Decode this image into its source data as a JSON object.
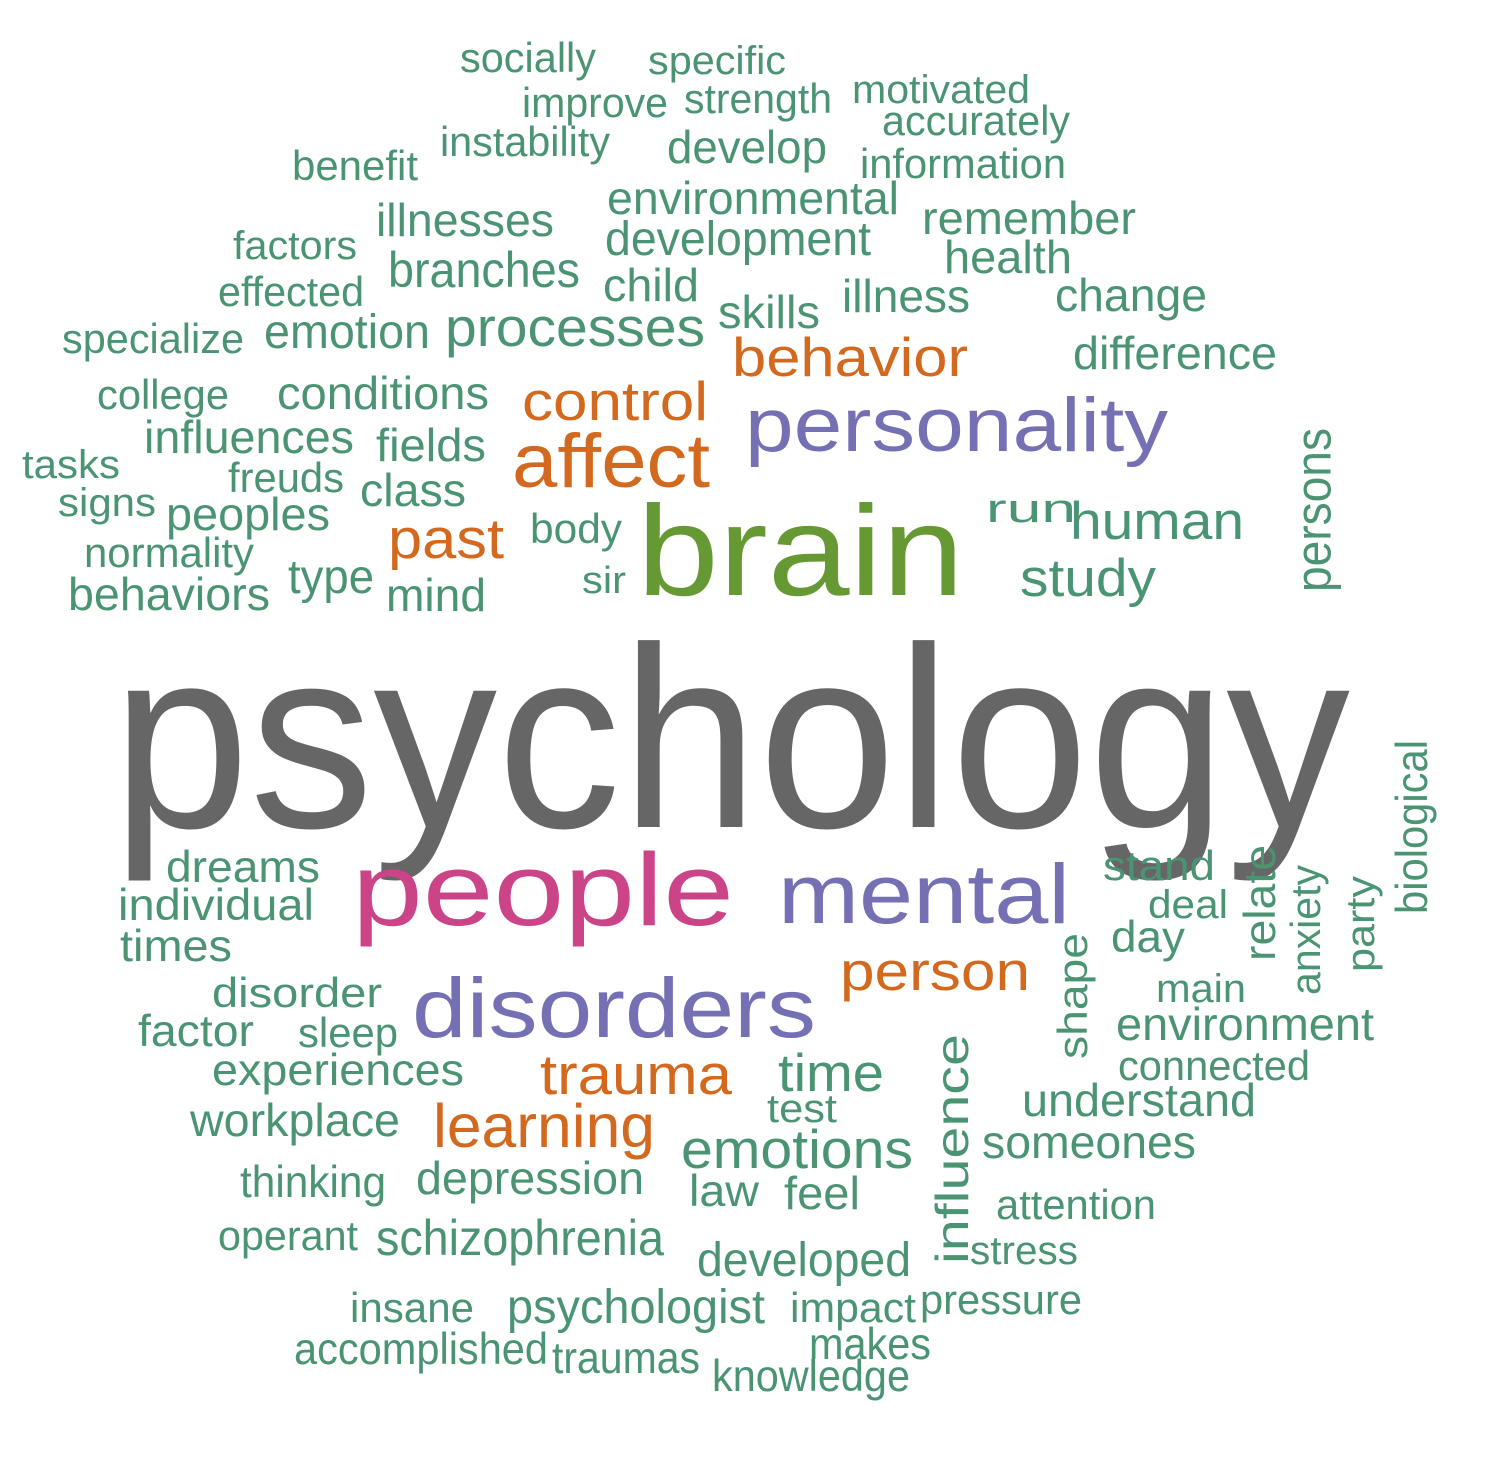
{
  "palette": {
    "gray": "#666666",
    "green": "#669933",
    "pink": "#CC4488",
    "purple": "#7570B3",
    "orange": "#D2691E",
    "teal": "#4A9473"
  },
  "words": [
    {
      "text": "psychology",
      "color": "gray",
      "rotated": false
    },
    {
      "text": "brain",
      "color": "green",
      "rotated": false
    },
    {
      "text": "people",
      "color": "pink",
      "rotated": false
    },
    {
      "text": "mental",
      "color": "purple",
      "rotated": false
    },
    {
      "text": "disorders",
      "color": "purple",
      "rotated": false
    },
    {
      "text": "personality",
      "color": "purple",
      "rotated": false
    },
    {
      "text": "affect",
      "color": "orange",
      "rotated": false
    },
    {
      "text": "control",
      "color": "orange",
      "rotated": false
    },
    {
      "text": "behavior",
      "color": "orange",
      "rotated": false
    },
    {
      "text": "past",
      "color": "orange",
      "rotated": false
    },
    {
      "text": "person",
      "color": "orange",
      "rotated": false
    },
    {
      "text": "trauma",
      "color": "orange",
      "rotated": false
    },
    {
      "text": "learning",
      "color": "orange",
      "rotated": false
    },
    {
      "text": "socially",
      "color": "teal",
      "rotated": false
    },
    {
      "text": "specific",
      "color": "teal",
      "rotated": false
    },
    {
      "text": "improve",
      "color": "teal",
      "rotated": false
    },
    {
      "text": "strength",
      "color": "teal",
      "rotated": false
    },
    {
      "text": "motivated",
      "color": "teal",
      "rotated": false
    },
    {
      "text": "accurately",
      "color": "teal",
      "rotated": false
    },
    {
      "text": "instability",
      "color": "teal",
      "rotated": false
    },
    {
      "text": "develop",
      "color": "teal",
      "rotated": false
    },
    {
      "text": "benefit",
      "color": "teal",
      "rotated": false
    },
    {
      "text": "information",
      "color": "teal",
      "rotated": false
    },
    {
      "text": "environmental",
      "color": "teal",
      "rotated": false
    },
    {
      "text": "illnesses",
      "color": "teal",
      "rotated": false
    },
    {
      "text": "remember",
      "color": "teal",
      "rotated": false
    },
    {
      "text": "factors",
      "color": "teal",
      "rotated": false
    },
    {
      "text": "development",
      "color": "teal",
      "rotated": false
    },
    {
      "text": "health",
      "color": "teal",
      "rotated": false
    },
    {
      "text": "branches",
      "color": "teal",
      "rotated": false
    },
    {
      "text": "child",
      "color": "teal",
      "rotated": false
    },
    {
      "text": "effected",
      "color": "teal",
      "rotated": false
    },
    {
      "text": "illness",
      "color": "teal",
      "rotated": false
    },
    {
      "text": "change",
      "color": "teal",
      "rotated": false
    },
    {
      "text": "skills",
      "color": "teal",
      "rotated": false
    },
    {
      "text": "processes",
      "color": "teal",
      "rotated": false
    },
    {
      "text": "specialize",
      "color": "teal",
      "rotated": false
    },
    {
      "text": "emotion",
      "color": "teal",
      "rotated": false
    },
    {
      "text": "difference",
      "color": "teal",
      "rotated": false
    },
    {
      "text": "college",
      "color": "teal",
      "rotated": false
    },
    {
      "text": "conditions",
      "color": "teal",
      "rotated": false
    },
    {
      "text": "influences",
      "color": "teal",
      "rotated": false
    },
    {
      "text": "fields",
      "color": "teal",
      "rotated": false
    },
    {
      "text": "tasks",
      "color": "teal",
      "rotated": false
    },
    {
      "text": "freuds",
      "color": "teal",
      "rotated": false
    },
    {
      "text": "class",
      "color": "teal",
      "rotated": false
    },
    {
      "text": "signs",
      "color": "teal",
      "rotated": false
    },
    {
      "text": "peoples",
      "color": "teal",
      "rotated": false
    },
    {
      "text": "run",
      "color": "teal",
      "rotated": false
    },
    {
      "text": "human",
      "color": "teal",
      "rotated": false
    },
    {
      "text": "body",
      "color": "teal",
      "rotated": false
    },
    {
      "text": "normality",
      "color": "teal",
      "rotated": false
    },
    {
      "text": "type",
      "color": "teal",
      "rotated": false
    },
    {
      "text": "sir",
      "color": "teal",
      "rotated": false
    },
    {
      "text": "study",
      "color": "teal",
      "rotated": false
    },
    {
      "text": "behaviors",
      "color": "teal",
      "rotated": false
    },
    {
      "text": "mind",
      "color": "teal",
      "rotated": false
    },
    {
      "text": "persons",
      "color": "teal",
      "rotated": true
    },
    {
      "text": "biological",
      "color": "teal",
      "rotated": true
    },
    {
      "text": "dreams",
      "color": "teal",
      "rotated": false
    },
    {
      "text": "stand",
      "color": "teal",
      "rotated": false
    },
    {
      "text": "individual",
      "color": "teal",
      "rotated": false
    },
    {
      "text": "deal",
      "color": "teal",
      "rotated": false
    },
    {
      "text": "relate",
      "color": "teal",
      "rotated": true
    },
    {
      "text": "anxiety",
      "color": "teal",
      "rotated": true
    },
    {
      "text": "party",
      "color": "teal",
      "rotated": true
    },
    {
      "text": "times",
      "color": "teal",
      "rotated": false
    },
    {
      "text": "day",
      "color": "teal",
      "rotated": false
    },
    {
      "text": "shape",
      "color": "teal",
      "rotated": true
    },
    {
      "text": "disorder",
      "color": "teal",
      "rotated": false
    },
    {
      "text": "main",
      "color": "teal",
      "rotated": false
    },
    {
      "text": "factor",
      "color": "teal",
      "rotated": false
    },
    {
      "text": "sleep",
      "color": "teal",
      "rotated": false
    },
    {
      "text": "environment",
      "color": "teal",
      "rotated": false
    },
    {
      "text": "experiences",
      "color": "teal",
      "rotated": false
    },
    {
      "text": "time",
      "color": "teal",
      "rotated": false
    },
    {
      "text": "connected",
      "color": "teal",
      "rotated": false
    },
    {
      "text": "influence",
      "color": "teal",
      "rotated": true
    },
    {
      "text": "test",
      "color": "teal",
      "rotated": false
    },
    {
      "text": "understand",
      "color": "teal",
      "rotated": false
    },
    {
      "text": "workplace",
      "color": "teal",
      "rotated": false
    },
    {
      "text": "emotions",
      "color": "teal",
      "rotated": false
    },
    {
      "text": "someones",
      "color": "teal",
      "rotated": false
    },
    {
      "text": "thinking",
      "color": "teal",
      "rotated": false
    },
    {
      "text": "depression",
      "color": "teal",
      "rotated": false
    },
    {
      "text": "law",
      "color": "teal",
      "rotated": false
    },
    {
      "text": "feel",
      "color": "teal",
      "rotated": false
    },
    {
      "text": "attention",
      "color": "teal",
      "rotated": false
    },
    {
      "text": "operant",
      "color": "teal",
      "rotated": false
    },
    {
      "text": "schizophrenia",
      "color": "teal",
      "rotated": false
    },
    {
      "text": "stress",
      "color": "teal",
      "rotated": false
    },
    {
      "text": "developed",
      "color": "teal",
      "rotated": false
    },
    {
      "text": "insane",
      "color": "teal",
      "rotated": false
    },
    {
      "text": "psychologist",
      "color": "teal",
      "rotated": false
    },
    {
      "text": "impact",
      "color": "teal",
      "rotated": false
    },
    {
      "text": "pressure",
      "color": "teal",
      "rotated": false
    },
    {
      "text": "accomplished",
      "color": "teal",
      "rotated": false
    },
    {
      "text": "makes",
      "color": "teal",
      "rotated": false
    },
    {
      "text": "traumas",
      "color": "teal",
      "rotated": false
    },
    {
      "text": "knowledge",
      "color": "teal",
      "rotated": false
    }
  ]
}
